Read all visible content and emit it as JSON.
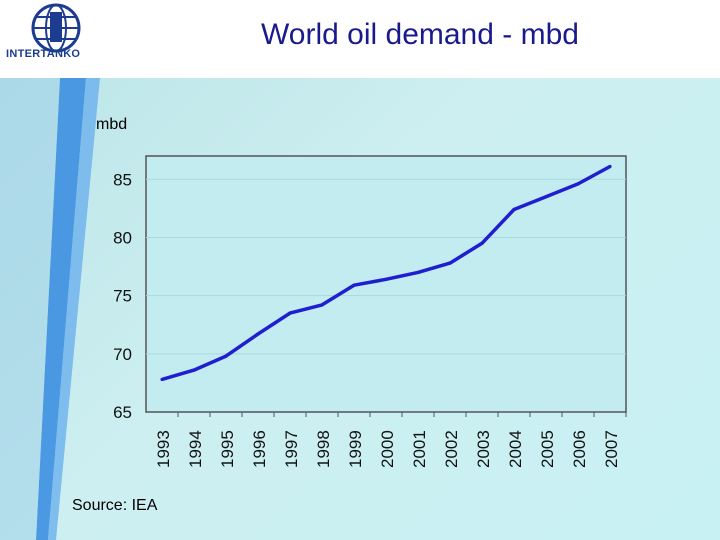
{
  "slide": {
    "title": "World oil demand - mbd",
    "logo_text": "INTERTANKO",
    "source": "Source: IEA"
  },
  "colors": {
    "title": "#1a1a8c",
    "line": "#1f1fd0",
    "slide_bg": "#c8eef1",
    "sidebar_stripe": "#3b8de0"
  },
  "chart_data": {
    "type": "line",
    "ylabel": "mbd",
    "xlabel": "",
    "categories": [
      "1993",
      "1994",
      "1995",
      "1996",
      "1997",
      "1998",
      "1999",
      "2000",
      "2001",
      "2002",
      "2003",
      "2004",
      "2005",
      "2006",
      "2007"
    ],
    "series": [
      {
        "values": [
          67.8,
          68.6,
          69.8,
          71.7,
          73.5,
          74.2,
          75.9,
          76.4,
          77.0,
          77.8,
          79.5,
          82.4,
          83.5,
          84.6,
          86.1
        ]
      }
    ],
    "ylim": [
      65,
      87
    ],
    "yticks": [
      65,
      70,
      75,
      80,
      85
    ],
    "grid": true,
    "legend": "none"
  }
}
